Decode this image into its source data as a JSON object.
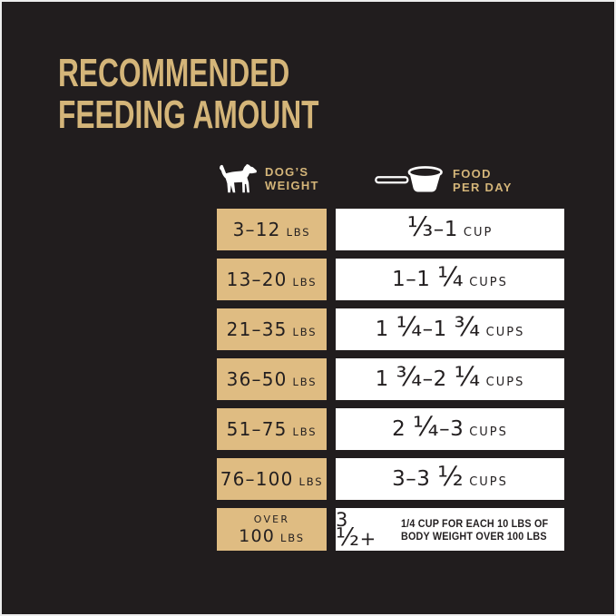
{
  "title": {
    "line1": "RECOMMENDED",
    "line2": "FEEDING AMOUNT"
  },
  "colors": {
    "background": "#211d1e",
    "gold_text": "#d4b579",
    "tan_cell": "#dfbc82",
    "cell_text": "#231f20",
    "white_cell": "#ffffff"
  },
  "table": {
    "weight_header": {
      "icon": "dog-icon",
      "line1": "DOG’S",
      "line2": "WEIGHT"
    },
    "food_header": {
      "icon": "measuring-cup-icon",
      "line1": "FOOD",
      "line2": "PER DAY"
    },
    "rows": [
      {
        "weight": "3–12",
        "weight_unit": "LBS",
        "amount": "⅓–1",
        "amount_unit": "CUP"
      },
      {
        "weight": "13–20",
        "weight_unit": "LBS",
        "amount": "1–1 ¼",
        "amount_unit": "CUPS"
      },
      {
        "weight": "21–35",
        "weight_unit": "LBS",
        "amount": "1 ¼–1 ¾",
        "amount_unit": "CUPS"
      },
      {
        "weight": "36–50",
        "weight_unit": "LBS",
        "amount": "1 ¾–2 ¼",
        "amount_unit": "CUPS"
      },
      {
        "weight": "51–75",
        "weight_unit": "LBS",
        "amount": "2 ¼–3",
        "amount_unit": "CUPS"
      },
      {
        "weight": "76–100",
        "weight_unit": "LBS",
        "amount": "3–3 ½",
        "amount_unit": "CUPS"
      },
      {
        "weight_prefix": "OVER",
        "weight": "100",
        "weight_unit": "LBS",
        "amount": "3 ½+",
        "note_line1": "1/4 CUP FOR EACH 10 LBS OF",
        "note_line2": "BODY WEIGHT OVER 100 LBS"
      }
    ]
  },
  "chart_data": {
    "type": "table",
    "title": "RECOMMENDED FEEDING AMOUNT",
    "columns": [
      "DOG'S WEIGHT",
      "FOOD PER DAY"
    ],
    "rows": [
      [
        "3–12 LBS",
        "⅓–1 CUP"
      ],
      [
        "13–20 LBS",
        "1–1 ¼ CUPS"
      ],
      [
        "21–35 LBS",
        "1 ¼–1 ¾ CUPS"
      ],
      [
        "36–50 LBS",
        "1 ¾–2 ¼ CUPS"
      ],
      [
        "51–75 LBS",
        "2 ¼–3 CUPS"
      ],
      [
        "76–100 LBS",
        "3–3 ½ CUPS"
      ],
      [
        "OVER 100 LBS",
        "3 ½+ 1/4 CUP FOR EACH 10 LBS OF BODY WEIGHT OVER 100 LBS"
      ]
    ]
  }
}
